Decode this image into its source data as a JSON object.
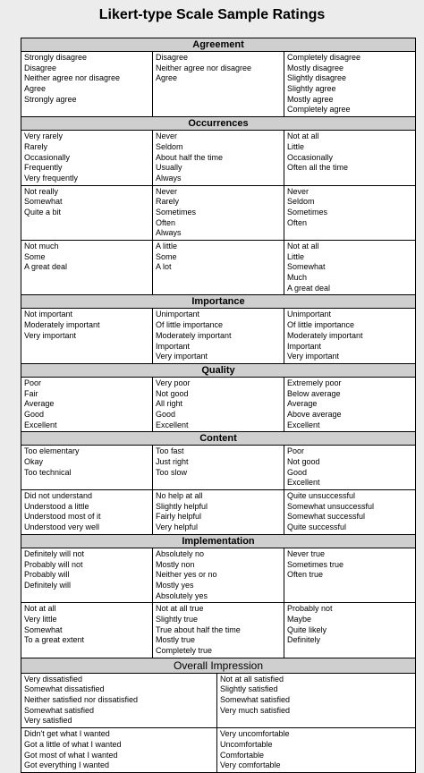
{
  "title": "Likert-type Scale Sample Ratings",
  "sections": [
    {
      "name": "Agreement",
      "rows": [
        [
          [
            "Strongly disagree",
            "Disagree",
            "Neither agree nor disagree",
            "Agree",
            "Strongly agree"
          ],
          [
            "Disagree",
            "Neither agree nor disagree",
            "Agree"
          ],
          [
            "Completely disagree",
            "Mostly disagree",
            "Slightly disagree",
            "Slightly agree",
            "Mostly agree",
            "Completely agree"
          ]
        ]
      ]
    },
    {
      "name": "Occurrences",
      "rows": [
        [
          [
            "Very rarely",
            "Rarely",
            "Occasionally",
            "Frequently",
            "Very frequently"
          ],
          [
            "Never",
            "Seldom",
            "About half the time",
            "Usually",
            "Always"
          ],
          [
            "Not at all",
            "Little",
            "Occasionally",
            "Often all the time"
          ]
        ],
        [
          [
            "Not really",
            "Somewhat",
            "Quite a bit"
          ],
          [
            "Never",
            "Rarely",
            "Sometimes",
            "Often",
            "Always"
          ],
          [
            "Never",
            "Seldom",
            "Sometimes",
            "Often"
          ]
        ],
        [
          [
            "Not much",
            "Some",
            "A great deal"
          ],
          [
            "A little",
            "Some",
            "A lot"
          ],
          [
            "Not at all",
            "Little",
            "Somewhat",
            "Much",
            "A great deal"
          ]
        ]
      ]
    },
    {
      "name": "Importance",
      "rows": [
        [
          [
            "Not important",
            "Moderately important",
            "Very important"
          ],
          [
            "Unimportant",
            "Of little importance",
            "Moderately important",
            "Important",
            "Very important"
          ],
          [
            "Unimportant",
            "Of little importance",
            "Moderately important",
            "Important",
            "Very important"
          ]
        ]
      ]
    },
    {
      "name": "Quality",
      "rows": [
        [
          [
            "Poor",
            "Fair",
            "Average",
            "Good",
            "Excellent"
          ],
          [
            "Very poor",
            "Not good",
            "All right",
            "Good",
            "Excellent"
          ],
          [
            "Extremely poor",
            "Below average",
            "Average",
            "Above average",
            "Excellent"
          ]
        ]
      ]
    },
    {
      "name": "Content",
      "rows": [
        [
          [
            "Too elementary",
            "Okay",
            "Too technical"
          ],
          [
            "Too fast",
            "Just right",
            "Too slow"
          ],
          [
            "Poor",
            "Not good",
            "Good",
            "Excellent"
          ]
        ],
        [
          [
            "Did not understand",
            "Understood a little",
            "Understood most of it",
            "Understood very well"
          ],
          [
            "No help at all",
            "Slightly helpful",
            "Fairly helpful",
            "Very helpful"
          ],
          [
            "Quite unsuccessful",
            "Somewhat unsuccessful",
            "Somewhat successful",
            "Quite successful"
          ]
        ]
      ]
    },
    {
      "name": "Implementation",
      "rows": [
        [
          [
            "Definitely will not",
            "Probably will not",
            "Probably will",
            "Definitely will"
          ],
          [
            "Absolutely no",
            "Mostly non",
            "Neither yes or no",
            "Mostly yes",
            "Absolutely yes"
          ],
          [
            "Never true",
            "Sometimes true",
            "Often true"
          ]
        ],
        [
          [
            "Not at all",
            "Very little",
            "Somewhat",
            "To a great extent"
          ],
          [
            "Not at all true",
            "Slightly true",
            "True about half the time",
            "Mostly true",
            "Completely true"
          ],
          [
            "Probably not",
            "Maybe",
            "Quite likely",
            "Definitely"
          ]
        ]
      ]
    },
    {
      "name": "Overall Impression",
      "big": true,
      "rows": [
        [
          [
            "Very dissatisfied",
            "Somewhat dissatisfied",
            "Neither satisfied nor dissatisfied",
            "Somewhat satisfied",
            "Very satisfied"
          ],
          [
            "Not at all satisfied",
            "Slightly satisfied",
            "Somewhat satisfied",
            "Very much satisfied"
          ]
        ],
        [
          [
            "Didn't get what I wanted",
            "Got a little of what I wanted",
            "Got most of what I wanted",
            "Got everything I wanted"
          ],
          [
            "Very uncomfortable",
            "Uncomfortable",
            "Comfortable",
            "Very comfortable"
          ]
        ]
      ]
    }
  ]
}
